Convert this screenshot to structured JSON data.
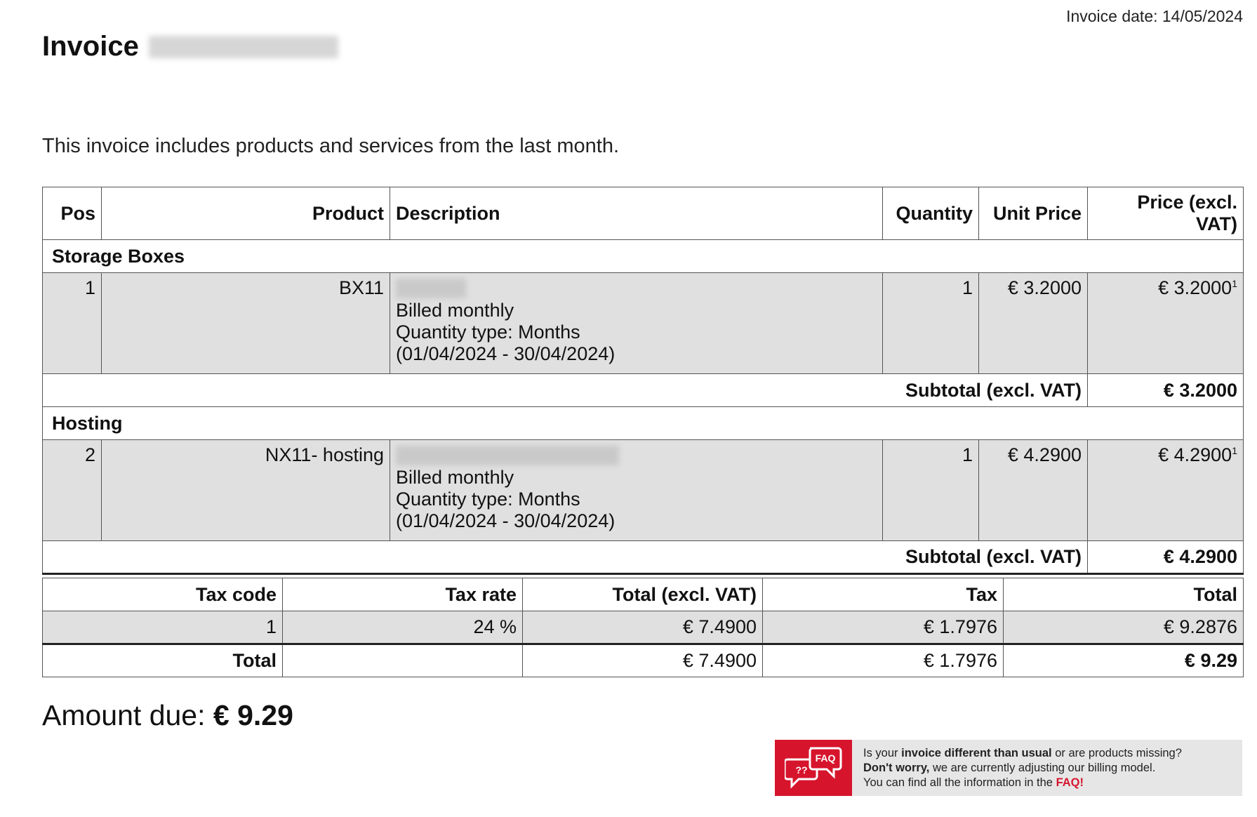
{
  "header": {
    "invoice_date": "Invoice date: 14/05/2024",
    "title": "Invoice"
  },
  "intro": "This invoice includes products and services from the last month.",
  "items_table": {
    "headers": {
      "pos": "Pos",
      "product": "Product",
      "description": "Description",
      "quantity": "Quantity",
      "unit_price": "Unit Price",
      "price": "Price (excl. VAT)"
    },
    "sections": [
      {
        "name": "Storage Boxes",
        "item": {
          "pos": "1",
          "product": "BX11",
          "description_lines": [
            "Billed monthly",
            "Quantity type: Months",
            "(01/04/2024 - 30/04/2024)"
          ],
          "quantity": "1",
          "unit_price": "€ 3.2000",
          "price": "€ 3.2000",
          "footnote": "1"
        },
        "subtotal_label": "Subtotal (excl. VAT)",
        "subtotal": "€ 3.2000"
      },
      {
        "name": "Hosting",
        "item": {
          "pos": "2",
          "product": "NX11- hosting",
          "description_lines": [
            "Billed monthly",
            "Quantity type: Months",
            "(01/04/2024 - 30/04/2024)"
          ],
          "quantity": "1",
          "unit_price": "€ 4.2900",
          "price": "€ 4.2900",
          "footnote": "1"
        },
        "subtotal_label": "Subtotal (excl. VAT)",
        "subtotal": "€ 4.2900"
      }
    ]
  },
  "tax_table": {
    "headers": {
      "tax_code": "Tax code",
      "tax_rate": "Tax rate",
      "total_excl": "Total (excl. VAT)",
      "tax": "Tax",
      "total": "Total"
    },
    "row": {
      "tax_code": "1",
      "tax_rate": "24 %",
      "total_excl": "€ 7.4900",
      "tax": "€ 1.7976",
      "total": "€ 9.2876"
    },
    "total_row": {
      "label": "Total",
      "total_excl": "€ 7.4900",
      "tax": "€ 1.7976",
      "total": "€ 9.29"
    }
  },
  "amount_due": {
    "label": "Amount due:",
    "value": "€ 9.29"
  },
  "faq_banner": {
    "icon": "faq-chat-icon",
    "icon_text_left": "??",
    "icon_text_right": "FAQ",
    "line1_pre": "Is your ",
    "line1_bold": "invoice different than usual",
    "line1_post": " or are products missing?",
    "line2_bold": "Don't worry,",
    "line2_post": " we are currently adjusting our billing model.",
    "line3_pre": "You can find all the information in the ",
    "line3_link": "FAQ!",
    "accent_color": "#d6152d"
  }
}
